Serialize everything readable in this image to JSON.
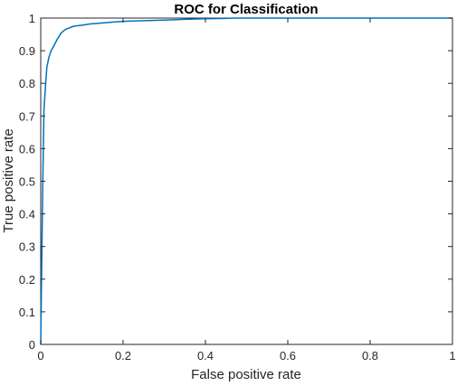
{
  "chart_data": {
    "type": "line",
    "title": "ROC for Classification",
    "xlabel": "False positive rate",
    "ylabel": "True positive rate",
    "xlim": [
      0,
      1
    ],
    "ylim": [
      0,
      1
    ],
    "xticks": [
      0,
      0.2,
      0.4,
      0.6,
      0.8,
      1
    ],
    "xtick_labels": [
      "0",
      "0.2",
      "0.4",
      "0.6",
      "0.8",
      "1"
    ],
    "yticks": [
      0,
      0.1,
      0.2,
      0.3,
      0.4,
      0.5,
      0.6,
      0.7,
      0.8,
      0.9,
      1
    ],
    "ytick_labels": [
      "0",
      "0.1",
      "0.2",
      "0.3",
      "0.4",
      "0.5",
      "0.6",
      "0.7",
      "0.8",
      "0.9",
      "1"
    ],
    "grid": false,
    "line_color": "#0072BD",
    "series": [
      {
        "x": [
          0,
          0.002,
          0.005,
          0.008,
          0.012,
          0.015,
          0.02,
          0.025,
          0.03,
          0.04,
          0.05,
          0.06,
          0.07,
          0.08,
          0.1,
          0.12,
          0.15,
          0.18,
          0.2,
          0.25,
          0.3,
          0.35,
          0.4,
          0.45,
          0.47,
          0.5,
          1
        ],
        "y": [
          0,
          0.2,
          0.5,
          0.72,
          0.8,
          0.85,
          0.88,
          0.9,
          0.91,
          0.935,
          0.955,
          0.965,
          0.97,
          0.975,
          0.978,
          0.982,
          0.985,
          0.988,
          0.99,
          0.992,
          0.994,
          0.996,
          0.998,
          0.999,
          1,
          1,
          1
        ]
      }
    ]
  }
}
